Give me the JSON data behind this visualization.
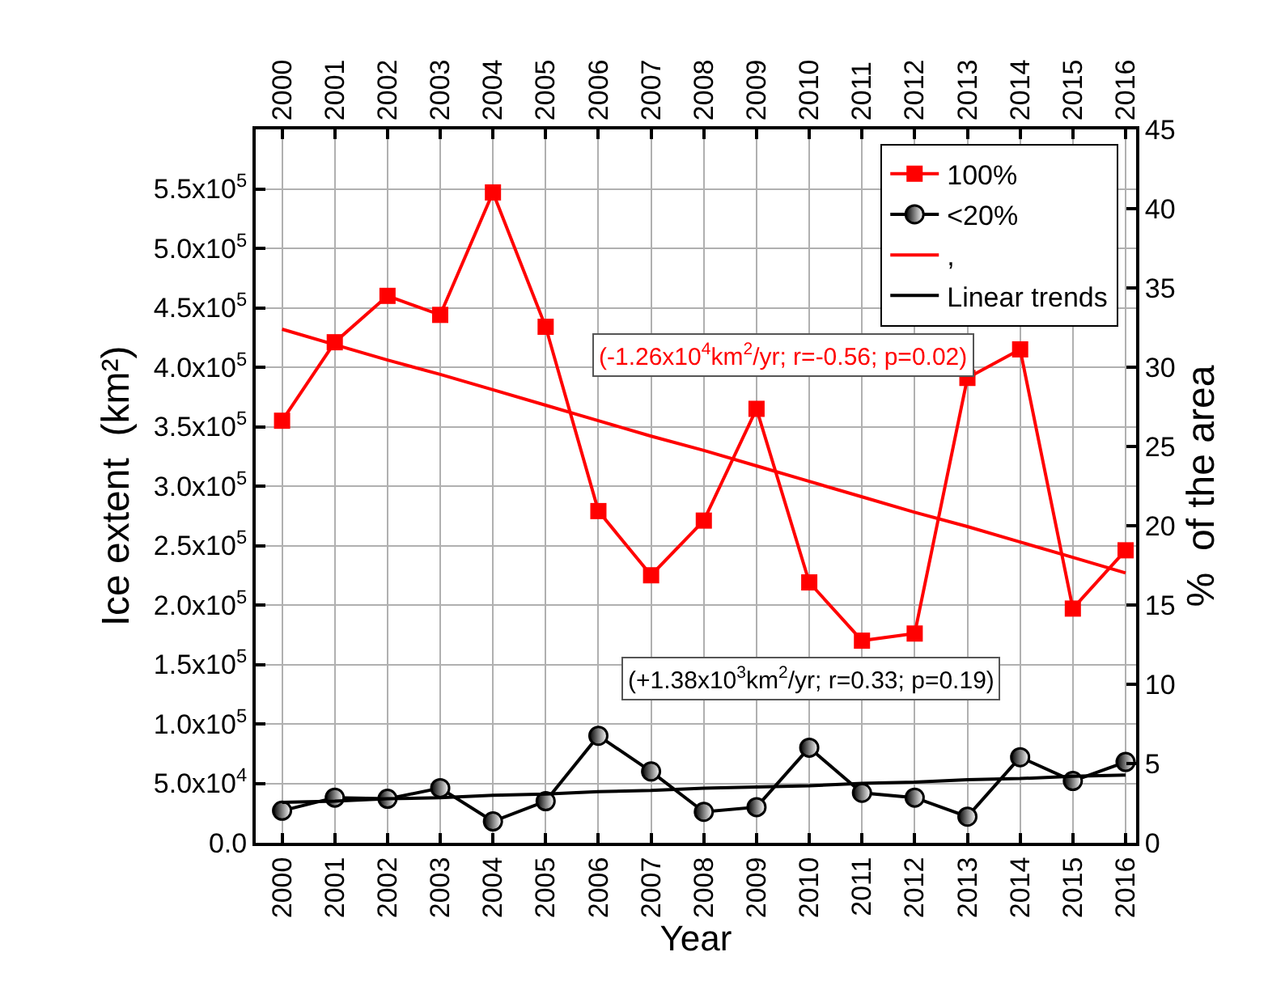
{
  "chart_data": {
    "type": "line",
    "xlabel": "Year",
    "ylabel": "Ice extent  (km²)",
    "y2label": "%  of the area",
    "x": [
      2000,
      2001,
      2002,
      2003,
      2004,
      2005,
      2006,
      2007,
      2008,
      2009,
      2010,
      2011,
      2012,
      2013,
      2014,
      2015,
      2016
    ],
    "series": [
      {
        "name": "100%",
        "color": "#ff0000",
        "marker": "square",
        "values": [
          355000,
          421000,
          460000,
          444000,
          547000,
          434000,
          279000,
          225000,
          271000,
          365000,
          219000,
          170000,
          176000,
          391000,
          415000,
          197000,
          246000
        ]
      },
      {
        "name": "<20%",
        "color": "#000000",
        "marker": "circle",
        "values": [
          27000,
          38000,
          37000,
          46000,
          18000,
          35000,
          90000,
          60000,
          26000,
          30000,
          80000,
          42000,
          38000,
          22000,
          72000,
          52000,
          68000
        ]
      },
      {
        "name": ",",
        "color": "#ff0000",
        "marker": "none",
        "values": [
          432000,
          419000,
          406000,
          394000,
          381000,
          368000,
          355000,
          342000,
          330000,
          317000,
          304000,
          291000,
          278000,
          266000,
          253000,
          240000,
          227000
        ]
      },
      {
        "name": "Linear trends",
        "color": "#000000",
        "marker": "none",
        "values": [
          34000,
          35000,
          37000,
          38000,
          40000,
          41000,
          43000,
          44000,
          46000,
          47000,
          48000,
          50000,
          51000,
          53000,
          54000,
          56000,
          57000
        ]
      }
    ],
    "annotations": [
      "(-1.26x10$^{4}$km$^{2}$/yr; r=-0.56; p=0.02)",
      "(+1.38x10$^{3}$km$^{2}$/yr; r=0.33; p=0.19)"
    ],
    "xlim": [
      1999.5,
      2016.2
    ],
    "xticks": [
      2000,
      2001,
      2002,
      2003,
      2004,
      2005,
      2006,
      2007,
      2008,
      2009,
      2010,
      2011,
      2012,
      2013,
      2014,
      2015,
      2016
    ],
    "x2lim": [
      1999.5,
      2016.2
    ],
    "x2ticks": [
      2000,
      2001,
      2002,
      2003,
      2004,
      2005,
      2006,
      2007,
      2008,
      2009,
      2010,
      2011,
      2012,
      2013,
      2014,
      2015,
      2016
    ],
    "ylim": [
      0,
      600000
    ],
    "yticks": [
      {
        "value": 0,
        "label": "0.0"
      },
      {
        "value": 50000,
        "label": "5.0x10$^{4}$"
      },
      {
        "value": 100000,
        "label": "1.0x10$^{5}$"
      },
      {
        "value": 150000,
        "label": "1.5x10$^{5}$"
      },
      {
        "value": 200000,
        "label": "2.0x10$^{5}$"
      },
      {
        "value": 250000,
        "label": "2.5x10$^{5}$"
      },
      {
        "value": 300000,
        "label": "3.0x10$^{5}$"
      },
      {
        "value": 350000,
        "label": "3.5x10$^{5}$"
      },
      {
        "value": 400000,
        "label": "4.0x10$^{5}$"
      },
      {
        "value": 450000,
        "label": "4.5x10$^{5}$"
      },
      {
        "value": 500000,
        "label": "5.0x10$^{5}$"
      },
      {
        "value": 550000,
        "label": "5.5x10$^{5}$"
      }
    ],
    "y2lim": [
      0,
      45
    ],
    "y2ticks": [
      0,
      5,
      10,
      15,
      20,
      25,
      30,
      35,
      40,
      45
    ],
    "grid": true,
    "legend": "top right",
    "line_style": "solid"
  }
}
